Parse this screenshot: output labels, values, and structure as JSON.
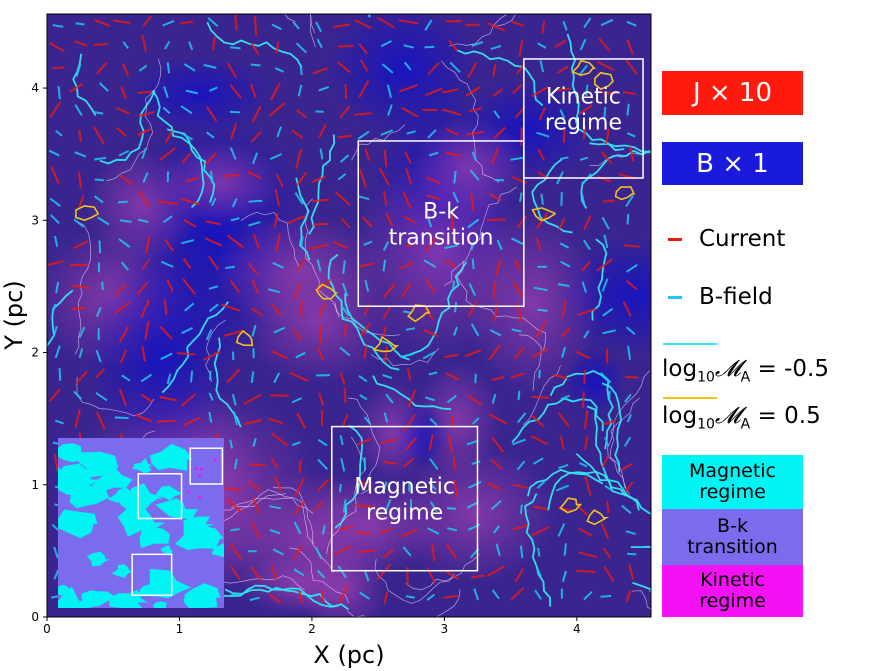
{
  "chart_data": {
    "type": "heatmap",
    "title": "",
    "xlabel": "X (pc)",
    "ylabel": "Y (pc)",
    "xlim": [
      0,
      4.56
    ],
    "ylim": [
      0,
      4.56
    ],
    "xticks": [
      "0",
      "1",
      "2",
      "3",
      "4"
    ],
    "yticks": [
      "0",
      "1",
      "2",
      "3",
      "4"
    ],
    "region_boxes": [
      {
        "label_lines": [
          "Kinetic",
          "regime"
        ],
        "x": [
          3.6,
          4.5
        ],
        "y": [
          3.32,
          4.22
        ]
      },
      {
        "label_lines": [
          "B-k",
          "transition"
        ],
        "x": [
          2.35,
          3.6
        ],
        "y": [
          2.35,
          3.6
        ]
      },
      {
        "label_lines": [
          "Magnetic",
          "regime"
        ],
        "x": [
          2.15,
          3.25
        ],
        "y": [
          0.35,
          1.44
        ]
      }
    ],
    "inset_boxes": [
      {
        "x": [
          1.07,
          1.33
        ],
        "y": [
          0.97,
          1.25
        ]
      },
      {
        "x": [
          0.65,
          1.0
        ],
        "y": [
          0.7,
          1.05
        ]
      },
      {
        "x": [
          0.6,
          0.92
        ],
        "y": [
          0.1,
          0.42
        ]
      }
    ],
    "contour_levels": [
      {
        "name": "log10 M_A = -0.5",
        "value": -0.5,
        "color": "#33e6f2"
      },
      {
        "name": "log10 M_A = 0.5",
        "value": 0.5,
        "color": "#f0c419"
      }
    ]
  },
  "legend": {
    "j_label": "J × 10",
    "b_label": "B × 1",
    "current_label": "Current",
    "bfield_label": "B-field",
    "ma_low_prefix": "log",
    "ma_low_sub": "10",
    "ma_low_symbol": "𝓜",
    "ma_low_symsub": "A",
    "ma_low_value": " = -0.5",
    "ma_high_prefix": "log",
    "ma_high_sub": "10",
    "ma_high_symbol": "𝓜",
    "ma_high_symsub": "A",
    "ma_high_value": " = 0.5",
    "regime_magnetic": [
      "Magnetic",
      "regime"
    ],
    "regime_bk": [
      "B-k",
      "transition"
    ],
    "regime_kinetic": [
      "Kinetic",
      "regime"
    ]
  },
  "colors": {
    "background": "#3a2590",
    "j_box": "#ff1a0d",
    "b_box": "#1a1adc",
    "current": "#e81a14",
    "bfield": "#1fc8f0",
    "contour_low": "#33e6f2",
    "contour_high": "#f0c419",
    "magnetic_regime": "#00f4f4",
    "bk_regime": "#7b6cee",
    "kinetic_regime": "#f411f4"
  }
}
